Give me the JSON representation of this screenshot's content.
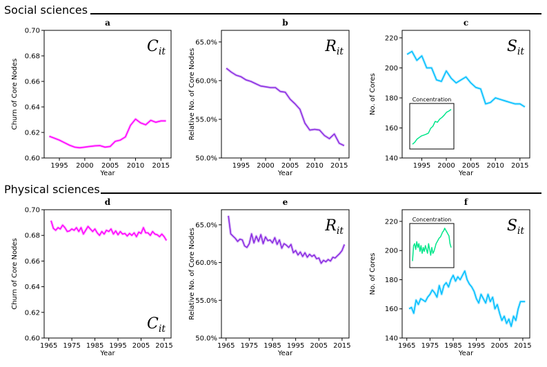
{
  "sections": [
    {
      "title": "Social sciences"
    },
    {
      "title": "Physical sciences"
    }
  ],
  "chart_data": [
    {
      "panel": "a",
      "type": "line",
      "symbol": "C",
      "symbol_sub": "it",
      "symbol_corner": "top-right",
      "xlabel": "Year",
      "ylabel": "Churn of Core Nodes",
      "ylim": [
        0.6,
        0.7
      ],
      "xlim": [
        1992,
        2017
      ],
      "yticks": [
        "0.60",
        "0.62",
        "0.64",
        "0.66",
        "0.68",
        "0.70"
      ],
      "ytick_values": [
        0.6,
        0.62,
        0.64,
        0.66,
        0.68,
        0.7
      ],
      "xticks": [
        "1995",
        "2000",
        "2005",
        "2010",
        "2015"
      ],
      "xtick_values": [
        1995,
        2000,
        2005,
        2010,
        2015
      ],
      "color": "#ff00ff",
      "series": [
        {
          "x": [
            1993,
            1994,
            1995,
            1996,
            1997,
            1998,
            1999,
            2000,
            2001,
            2002,
            2003,
            2004,
            2005,
            2006,
            2007,
            2008,
            2009,
            2010,
            2011,
            2012,
            2013,
            2014,
            2015,
            2016
          ],
          "y": [
            0.617,
            0.6155,
            0.614,
            0.612,
            0.61,
            0.6085,
            0.608,
            0.6085,
            0.609,
            0.6095,
            0.6097,
            0.6085,
            0.609,
            0.613,
            0.614,
            0.6165,
            0.6255,
            0.6305,
            0.6275,
            0.626,
            0.6295,
            0.628,
            0.629,
            0.629
          ]
        }
      ]
    },
    {
      "panel": "b",
      "type": "line",
      "symbol": "R",
      "symbol_sub": "it",
      "symbol_corner": "top-right",
      "xlabel": "Year",
      "ylabel": "Relative No. of Core Nodes",
      "ylim": [
        50,
        66.5
      ],
      "xlim": [
        1991,
        2017
      ],
      "yticks": [
        "50.0%",
        "55.0%",
        "60.0%",
        "65.0%"
      ],
      "ytick_values": [
        50,
        55,
        60,
        65
      ],
      "xticks": [
        "1995",
        "2000",
        "2005",
        "2010",
        "2015"
      ],
      "xtick_values": [
        1995,
        2000,
        2005,
        2010,
        2015
      ],
      "color": "#8a2be2",
      "series": [
        {
          "x": [
            1992,
            1993,
            1994,
            1995,
            1996,
            1997,
            1998,
            1999,
            2000,
            2001,
            2002,
            2003,
            2004,
            2005,
            2006,
            2007,
            2008,
            2009,
            2010,
            2011,
            2012,
            2013,
            2014,
            2015,
            2016
          ],
          "y": [
            61.6,
            61.1,
            60.7,
            60.5,
            60.1,
            59.9,
            59.6,
            59.3,
            59.2,
            59.1,
            59.1,
            58.6,
            58.5,
            57.6,
            57.0,
            56.3,
            54.5,
            53.6,
            53.7,
            53.6,
            52.9,
            52.5,
            53.1,
            51.9,
            51.6
          ]
        }
      ]
    },
    {
      "panel": "c",
      "type": "line",
      "symbol": "S",
      "symbol_sub": "it",
      "symbol_corner": "top-right",
      "xlabel": "Year",
      "ylabel": "No. of Cores",
      "ylim": [
        140,
        225
      ],
      "xlim": [
        1991,
        2017
      ],
      "yticks": [
        "140",
        "160",
        "180",
        "200",
        "220"
      ],
      "ytick_values": [
        140,
        160,
        180,
        200,
        220
      ],
      "xticks": [
        "1995",
        "2000",
        "2005",
        "2010",
        "2015"
      ],
      "xtick_values": [
        1995,
        2000,
        2005,
        2010,
        2015
      ],
      "color": "#00bfff",
      "series": [
        {
          "x": [
            1992,
            1993,
            1994,
            1995,
            1996,
            1997,
            1998,
            1999,
            2000,
            2001,
            2002,
            2003,
            2004,
            2005,
            2006,
            2007,
            2008,
            2009,
            2010,
            2011,
            2012,
            2013,
            2014,
            2015,
            2016
          ],
          "y": [
            209,
            211,
            205,
            208,
            200,
            200,
            192,
            191,
            198,
            193,
            190,
            192,
            194,
            190,
            187,
            186,
            176,
            177,
            180,
            179,
            178,
            177,
            176,
            176,
            174
          ]
        }
      ],
      "inset": {
        "title": "Concentration",
        "corner": "bottom-left",
        "color": "#00e68a",
        "values": [
          0.05,
          0.1,
          0.18,
          0.22,
          0.26,
          0.28,
          0.3,
          0.33,
          0.45,
          0.5,
          0.62,
          0.6,
          0.68,
          0.72,
          0.78,
          0.85,
          0.88,
          0.92
        ]
      }
    },
    {
      "panel": "d",
      "type": "line",
      "symbol": "C",
      "symbol_sub": "it",
      "symbol_corner": "bottom-right",
      "xlabel": "Year",
      "ylabel": "Churn of Core Nodes",
      "ylim": [
        0.6,
        0.7
      ],
      "xlim": [
        1963,
        2018
      ],
      "yticks": [
        "0.60",
        "0.62",
        "0.64",
        "0.66",
        "0.68",
        "0.70"
      ],
      "ytick_values": [
        0.6,
        0.62,
        0.64,
        0.66,
        0.68,
        0.7
      ],
      "xticks": [
        "1965",
        "1975",
        "1985",
        "1995",
        "2005",
        "2015"
      ],
      "xtick_values": [
        1965,
        1975,
        1985,
        1995,
        2005,
        2015
      ],
      "color": "#ff00ff",
      "series": [
        {
          "x": [
            1966,
            1967,
            1968,
            1969,
            1970,
            1971,
            1972,
            1973,
            1974,
            1975,
            1976,
            1977,
            1978,
            1979,
            1980,
            1981,
            1982,
            1983,
            1984,
            1985,
            1986,
            1987,
            1988,
            1989,
            1990,
            1991,
            1992,
            1993,
            1994,
            1995,
            1996,
            1997,
            1998,
            1999,
            2000,
            2001,
            2002,
            2003,
            2004,
            2005,
            2006,
            2007,
            2008,
            2009,
            2010,
            2011,
            2012,
            2013,
            2014,
            2015,
            2016
          ],
          "y": [
            0.6915,
            0.6855,
            0.684,
            0.686,
            0.685,
            0.688,
            0.686,
            0.683,
            0.6835,
            0.685,
            0.684,
            0.686,
            0.683,
            0.686,
            0.681,
            0.684,
            0.687,
            0.685,
            0.683,
            0.685,
            0.682,
            0.68,
            0.683,
            0.681,
            0.684,
            0.683,
            0.685,
            0.681,
            0.6835,
            0.6805,
            0.683,
            0.681,
            0.6815,
            0.6795,
            0.6815,
            0.68,
            0.682,
            0.679,
            0.6825,
            0.6815,
            0.686,
            0.682,
            0.682,
            0.68,
            0.683,
            0.681,
            0.6805,
            0.679,
            0.681,
            0.679,
            0.676
          ]
        }
      ]
    },
    {
      "panel": "e",
      "type": "line",
      "symbol": "R",
      "symbol_sub": "it",
      "symbol_corner": "top-right",
      "xlabel": "Year",
      "ylabel": "Relative No. of Core Nodes",
      "ylim": [
        50,
        67
      ],
      "xlim": [
        1963,
        2018
      ],
      "yticks": [
        "50.0%",
        "55.0%",
        "60.0%",
        "65.0%"
      ],
      "ytick_values": [
        50,
        55,
        60,
        65
      ],
      "xticks": [
        "1965",
        "1975",
        "1985",
        "1995",
        "2005",
        "2015"
      ],
      "xtick_values": [
        1965,
        1975,
        1985,
        1995,
        2005,
        2015
      ],
      "color": "#8a2be2",
      "series": [
        {
          "x": [
            1966,
            1967,
            1968,
            1969,
            1970,
            1971,
            1972,
            1973,
            1974,
            1975,
            1976,
            1977,
            1978,
            1979,
            1980,
            1981,
            1982,
            1983,
            1984,
            1985,
            1986,
            1987,
            1988,
            1989,
            1990,
            1991,
            1992,
            1993,
            1994,
            1995,
            1996,
            1997,
            1998,
            1999,
            2000,
            2001,
            2002,
            2003,
            2004,
            2005,
            2006,
            2007,
            2008,
            2009,
            2010,
            2011,
            2012,
            2013,
            2014,
            2015,
            2016
          ],
          "y": [
            66.2,
            63.8,
            63.5,
            63.2,
            62.8,
            63.1,
            63.0,
            62.2,
            62.0,
            62.5,
            63.8,
            62.6,
            63.5,
            62.8,
            63.7,
            62.5,
            63.4,
            62.9,
            63.0,
            62.6,
            63.3,
            62.4,
            63.0,
            61.9,
            62.5,
            62.3,
            62.0,
            62.4,
            61.3,
            61.6,
            61.0,
            61.4,
            60.8,
            61.3,
            60.7,
            61.1,
            60.8,
            61.0,
            60.5,
            60.6,
            59.9,
            60.3,
            60.1,
            60.4,
            60.2,
            60.7,
            60.6,
            60.9,
            61.2,
            61.6,
            62.4
          ]
        }
      ]
    },
    {
      "panel": "f",
      "type": "line",
      "symbol": "S",
      "symbol_sub": "it",
      "symbol_corner": "top-right",
      "xlabel": "Year",
      "ylabel": "No. of Cores",
      "ylim": [
        140,
        228
      ],
      "xlim": [
        1963,
        2018
      ],
      "yticks": [
        "140",
        "160",
        "180",
        "200",
        "220"
      ],
      "ytick_values": [
        140,
        160,
        180,
        200,
        220
      ],
      "xticks": [
        "1965",
        "1975",
        "1985",
        "1995",
        "2005",
        "2015"
      ],
      "xtick_values": [
        1965,
        1975,
        1985,
        1995,
        2005,
        2015
      ],
      "color": "#00bfff",
      "series": [
        {
          "x": [
            1966,
            1967,
            1968,
            1969,
            1970,
            1971,
            1972,
            1973,
            1974,
            1975,
            1976,
            1977,
            1978,
            1979,
            1980,
            1981,
            1982,
            1983,
            1984,
            1985,
            1986,
            1987,
            1988,
            1989,
            1990,
            1991,
            1992,
            1993,
            1994,
            1995,
            1996,
            1997,
            1998,
            1999,
            2000,
            2001,
            2002,
            2003,
            2004,
            2005,
            2006,
            2007,
            2008,
            2009,
            2010,
            2011,
            2012,
            2013,
            2014,
            2015,
            2016
          ],
          "y": [
            160,
            161,
            157,
            166,
            163,
            167,
            166,
            165,
            168,
            170,
            173,
            171,
            168,
            176,
            170,
            176,
            178,
            175,
            180,
            183,
            179,
            182,
            180,
            183,
            186,
            180,
            177,
            175,
            172,
            167,
            164,
            170,
            167,
            164,
            170,
            165,
            168,
            160,
            163,
            157,
            152,
            155,
            150,
            153,
            148,
            155,
            152,
            160,
            165,
            165,
            165
          ]
        }
      ],
      "inset": {
        "title": "Concentration",
        "corner": "top-left",
        "color": "#00e68a",
        "values": [
          0.1,
          0.5,
          0.55,
          0.4,
          0.6,
          0.45,
          0.55,
          0.35,
          0.5,
          0.3,
          0.45,
          0.35,
          0.5,
          0.4,
          0.3,
          0.55,
          0.4,
          0.25,
          0.45,
          0.3,
          0.35,
          0.45,
          0.55,
          0.6,
          0.65,
          0.7,
          0.72,
          0.78,
          0.85,
          0.88,
          0.95,
          0.9,
          0.85,
          0.8,
          0.75,
          0.55,
          0.45
        ]
      }
    }
  ]
}
